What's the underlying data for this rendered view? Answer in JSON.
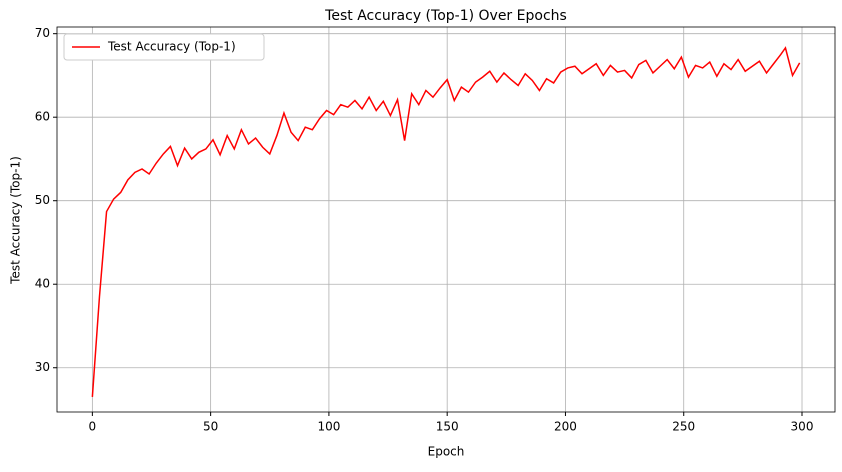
{
  "chart_data": {
    "type": "line",
    "title": "Test Accuracy (Top-1) Over Epochs",
    "xlabel": "Epoch",
    "ylabel": "Test Accuracy (Top-1)",
    "x": [
      0,
      3,
      6,
      9,
      12,
      15,
      18,
      21,
      24,
      27,
      30,
      33,
      36,
      39,
      42,
      45,
      48,
      51,
      54,
      57,
      60,
      63,
      66,
      69,
      72,
      75,
      78,
      81,
      84,
      87,
      90,
      93,
      96,
      99,
      102,
      105,
      108,
      111,
      114,
      117,
      120,
      123,
      126,
      129,
      132,
      135,
      138,
      141,
      144,
      147,
      150,
      153,
      156,
      159,
      162,
      165,
      168,
      171,
      174,
      177,
      180,
      183,
      186,
      189,
      192,
      195,
      198,
      201,
      204,
      207,
      210,
      213,
      216,
      219,
      222,
      225,
      228,
      231,
      234,
      237,
      240,
      243,
      246,
      249,
      252,
      255,
      258,
      261,
      264,
      267,
      270,
      273,
      276,
      279,
      282,
      285,
      288,
      291,
      293,
      296,
      299
    ],
    "series": [
      {
        "name": "Test Accuracy (Top-1)",
        "color": "#ff0000",
        "values": [
          26.5,
          38.5,
          48.7,
          50.2,
          51,
          52.5,
          53.4,
          53.8,
          53.2,
          54.5,
          55.6,
          56.5,
          54.2,
          56.3,
          55,
          55.8,
          56.2,
          57.3,
          55.5,
          57.8,
          56.2,
          58.5,
          56.8,
          57.5,
          56.4,
          55.6,
          57.8,
          60.5,
          58.2,
          57.2,
          58.8,
          58.5,
          59.8,
          60.8,
          60.3,
          61.5,
          61.2,
          62,
          61,
          62.4,
          60.8,
          61.9,
          60.2,
          62.1,
          57.2,
          62.8,
          61.5,
          63.2,
          62.4,
          63.5,
          64.5,
          62,
          63.6,
          63,
          64.2,
          64.8,
          65.5,
          64.2,
          65.3,
          64.5,
          63.8,
          65.2,
          64.4,
          63.2,
          64.6,
          64.1,
          65.4,
          65.9,
          66.1,
          65.2,
          65.8,
          66.4,
          65,
          66.2,
          65.4,
          65.6,
          64.7,
          66.3,
          66.8,
          65.3,
          66.1,
          66.9,
          65.8,
          67.2,
          64.8,
          66.2,
          65.9,
          66.6,
          64.9,
          66.4,
          65.7,
          66.9,
          65.5,
          66.1,
          66.7,
          65.3,
          66.4,
          67.5,
          68.3,
          65,
          66.5
        ]
      }
    ],
    "xlim": [
      -14.95,
      313.95
    ],
    "ylim": [
      24.7,
      70.8
    ],
    "xticks": [
      0,
      50,
      100,
      150,
      200,
      250,
      300
    ],
    "yticks": [
      30,
      40,
      50,
      60,
      70
    ],
    "grid": true,
    "legend": "upper left"
  }
}
